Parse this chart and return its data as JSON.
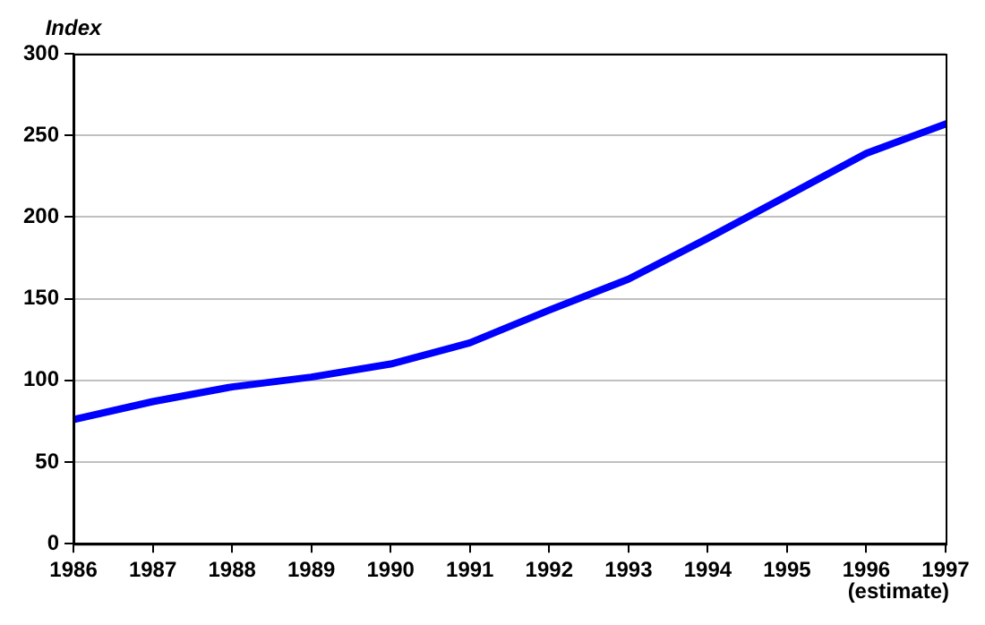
{
  "chart_data": {
    "type": "line",
    "ylabel": "Index",
    "x": [
      1986,
      1987,
      1988,
      1989,
      1990,
      1991,
      1992,
      1993,
      1994,
      1995,
      1996,
      1997
    ],
    "series": [
      {
        "color": "#0000ff",
        "values": [
          76,
          87,
          96,
          102,
          110,
          123,
          143,
          162,
          187,
          213,
          239,
          257
        ]
      }
    ],
    "xlim": [
      1986,
      1997
    ],
    "xticks": [
      1986,
      1987,
      1988,
      1989,
      1990,
      1991,
      1992,
      1993,
      1994,
      1995,
      1996,
      1997
    ],
    "ylim": [
      0,
      300
    ],
    "yticks": [
      0,
      50,
      100,
      150,
      200,
      250,
      300
    ],
    "grid": "y",
    "legend": false,
    "marker": "none",
    "line_style": "solid",
    "annotations": [
      "(estimate)"
    ]
  }
}
